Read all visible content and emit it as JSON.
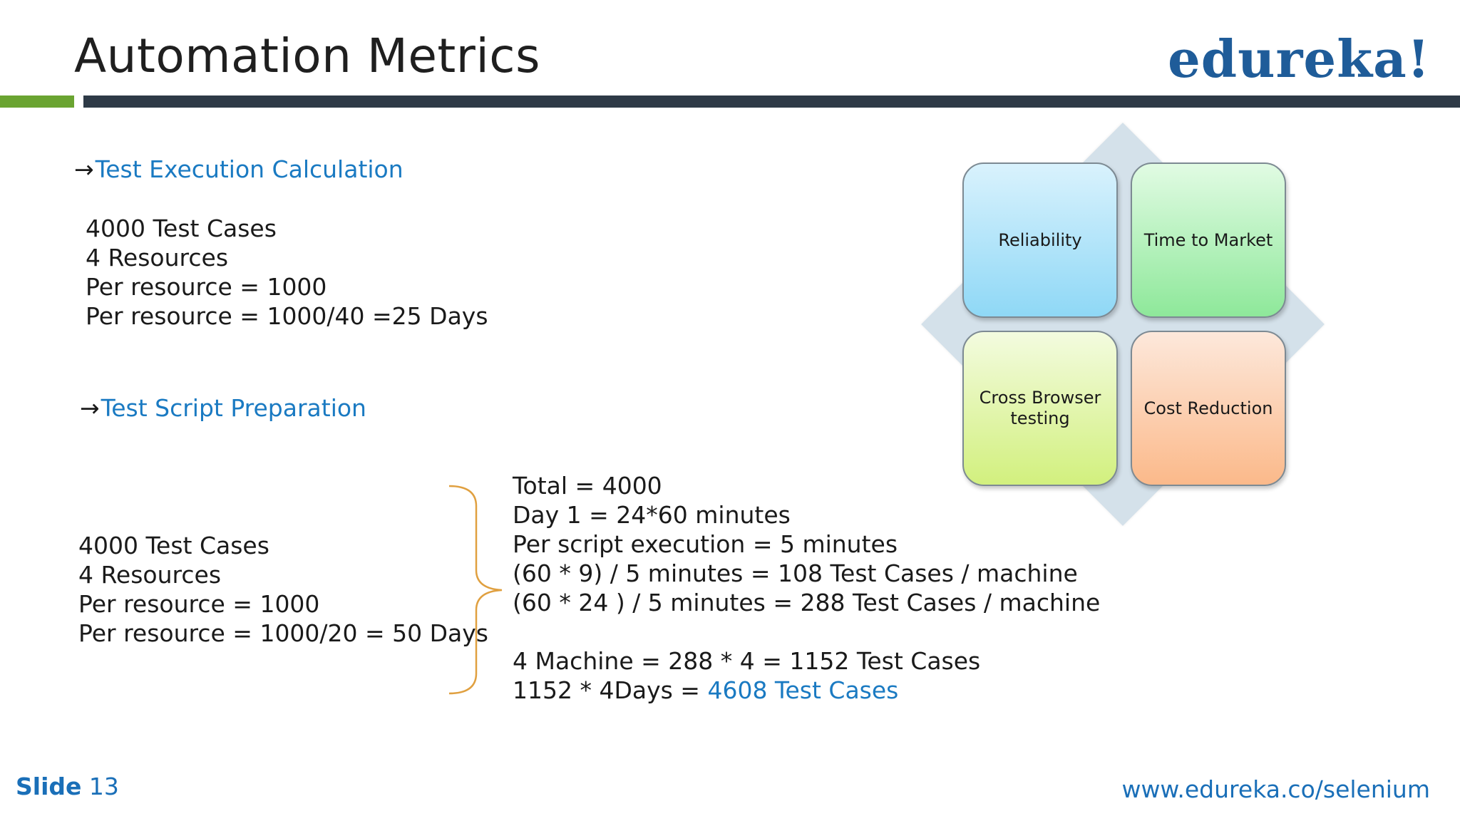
{
  "header": {
    "title": "Automation Metrics",
    "logo": "edureka!"
  },
  "execution": {
    "arrow": "→",
    "heading": "Test Execution Calculation",
    "lines": [
      "4000 Test Cases",
      "4 Resources",
      "Per resource = 1000",
      "Per resource = 1000/40 =25 Days"
    ]
  },
  "script_prep": {
    "arrow": "→",
    "heading": "Test Script Preparation",
    "left_lines": [
      "4000 Test Cases",
      "4 Resources",
      "Per resource = 1000",
      "Per resource = 1000/20 = 50 Days"
    ],
    "right_lines": [
      "Total = 4000",
      "Day 1 = 24*60 minutes",
      "Per script execution = 5 minutes",
      "(60 * 9) / 5 minutes = 108 Test Cases / machine",
      "(60 * 24 ) / 5 minutes  = 288 Test Cases / machine",
      "4 Machine = 288 * 4 = 1152 Test Cases"
    ],
    "final_line_prefix": "1152 * 4Days = ",
    "final_line_highlight": "4608 Test Cases"
  },
  "diagram": {
    "tiles": [
      "Reliability",
      "Time to Market",
      "Cross Browser testing",
      "Cost Reduction"
    ]
  },
  "footer": {
    "slide_word": "Slide",
    "slide_number": "13",
    "url": "www.edureka.co/selenium"
  },
  "colors": {
    "accent_blue": "#1a7ac2",
    "logo_blue": "#1f5c99",
    "green_bar": "#6aa431",
    "dark_bar": "#2e3a47",
    "brace": "#e0a040"
  }
}
